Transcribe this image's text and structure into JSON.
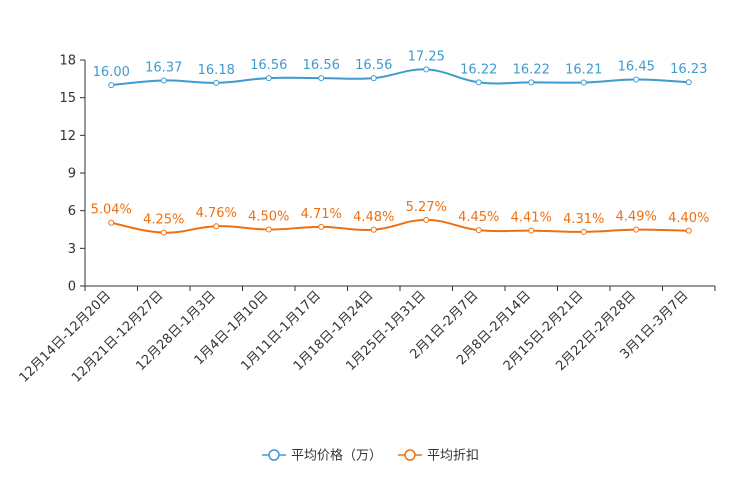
{
  "chart_data": {
    "type": "line",
    "categories": [
      "12月14日-12月20日",
      "12月21日-12月27日",
      "12月28日-1月3日",
      "1月4日-1月10日",
      "1月11日-1月17日",
      "1月18日-1月24日",
      "1月25日-1月31日",
      "2月1日-2月7日",
      "2月8日-2月14日",
      "2月15日-2月21日",
      "2月22日-2月28日",
      "3月1日-3月7日"
    ],
    "series": [
      {
        "name": "平均价格（万）",
        "color": "#3e9bcf",
        "values": [
          16.0,
          16.37,
          16.18,
          16.56,
          16.56,
          16.56,
          17.25,
          16.22,
          16.22,
          16.21,
          16.45,
          16.23
        ],
        "labels": [
          "16.00",
          "16.37",
          "16.18",
          "16.56",
          "16.56",
          "16.56",
          "17.25",
          "16.22",
          "16.22",
          "16.21",
          "16.45",
          "16.23"
        ]
      },
      {
        "name": "平均折扣",
        "color": "#ef7010",
        "values": [
          5.04,
          4.25,
          4.76,
          4.5,
          4.71,
          4.48,
          5.27,
          4.45,
          4.41,
          4.31,
          4.49,
          4.4
        ],
        "labels": [
          "5.04%",
          "4.25%",
          "4.76%",
          "4.50%",
          "4.71%",
          "4.48%",
          "5.27%",
          "4.45%",
          "4.41%",
          "4.31%",
          "4.49%",
          "4.40%"
        ]
      }
    ],
    "y_ticks": [
      "0",
      "3",
      "6",
      "9",
      "12",
      "15",
      "18"
    ],
    "ylim": [
      0,
      18
    ],
    "legend_position": "bottom-center"
  }
}
